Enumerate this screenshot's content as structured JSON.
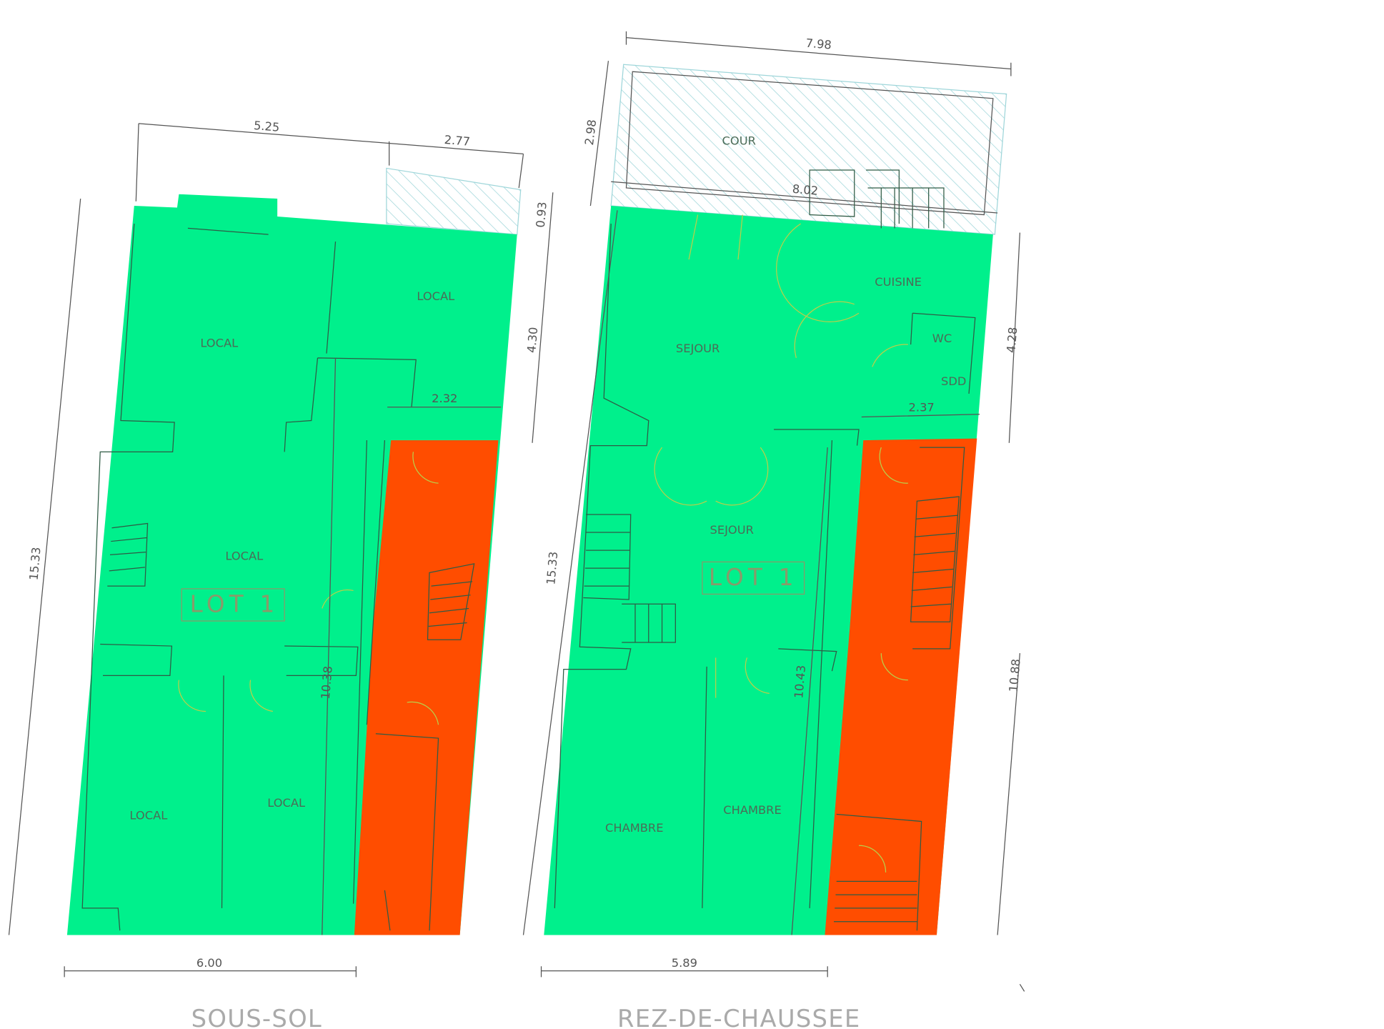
{
  "plans": [
    {
      "title": "SOUS-SOL",
      "lot": "LOT 1",
      "rooms": [
        "LOCAL",
        "LOCAL",
        "LOCAL",
        "LOCAL",
        "LOCAL"
      ],
      "dimensions": [
        "5.25",
        "2.77",
        "0.93",
        "4.30",
        "2.32",
        "15.33",
        "10.38",
        "6.00"
      ]
    },
    {
      "title": "REZ-DE-CHAUSSEE",
      "lot": "LOT 1",
      "rooms": [
        "COUR",
        "CUISINE",
        "SEJOUR",
        "WC",
        "SDD",
        "SEJOUR",
        "CHAMBRE",
        "CHAMBRE"
      ],
      "dimensions": [
        "7.98",
        "2.98",
        "8.02",
        "4.28",
        "2.37",
        "15.33",
        "10.43",
        "10.88",
        "5.89"
      ]
    }
  ]
}
